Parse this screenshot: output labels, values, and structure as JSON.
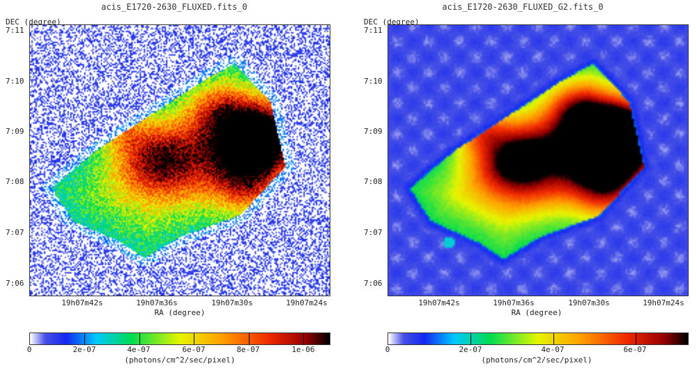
{
  "panels": [
    {
      "title": "acis_E1720-2630_FLUXED.fits_0",
      "dec_label": "DEC (degree)",
      "ra_label": "RA (degree)",
      "yticks": [
        "7:11",
        "7:10",
        "7:09",
        "7:08",
        "7:07",
        "7:06"
      ],
      "xticks": [
        "19h07m42s",
        "19h07m36s",
        "19h07m30s",
        "19h07m24s"
      ],
      "colorbar_ticks": [
        "0",
        "2e-07",
        "4e-07",
        "6e-07",
        "8e-07",
        "1e-06"
      ],
      "colorbar_unit": "(photons/cm^2/sec/pixel)",
      "colorbar_max": 1.1e-06,
      "style": "noisy"
    },
    {
      "title": "acis_E1720-2630_FLUXED_G2.fits_0",
      "dec_label": "DEC (degree)",
      "ra_label": "RA (degree)",
      "yticks": [
        "7:11",
        "7:10",
        "7:09",
        "7:08",
        "7:07",
        "7:06"
      ],
      "xticks": [
        "19h07m42s",
        "19h07m36s",
        "19h07m30s",
        "19h07m24s"
      ],
      "colorbar_ticks": [
        "0",
        "2e-07",
        "4e-07",
        "6e-07"
      ],
      "colorbar_unit": "(photons/cm^2/sec/pixel)",
      "colorbar_max": 7.3e-07,
      "style": "smooth"
    }
  ],
  "chart_data": [
    {
      "type": "heatmap",
      "title": "acis_E1720-2630_FLUXED.fits_0",
      "xlabel": "RA (degree)",
      "ylabel": "DEC (degree)",
      "x_tick_labels": [
        "19h07m42s",
        "19h07m36s",
        "19h07m30s",
        "19h07m24s"
      ],
      "y_tick_labels": [
        "7:11",
        "7:10",
        "7:09",
        "7:08",
        "7:07",
        "7:06"
      ],
      "colorbar": {
        "label": "(photons/cm^2/sec/pixel)",
        "range": [
          0,
          1.1e-06
        ],
        "ticks": [
          0,
          2e-07,
          4e-07,
          6e-07,
          8e-07,
          1e-06
        ]
      }
    },
    {
      "type": "heatmap",
      "title": "acis_E1720-2630_FLUXED_G2.fits_0",
      "xlabel": "RA (degree)",
      "ylabel": "DEC (degree)",
      "x_tick_labels": [
        "19h07m42s",
        "19h07m36s",
        "19h07m30s",
        "19h07m24s"
      ],
      "y_tick_labels": [
        "7:11",
        "7:10",
        "7:09",
        "7:08",
        "7:07",
        "7:06"
      ],
      "colorbar": {
        "label": "(photons/cm^2/sec/pixel)",
        "range": [
          0,
          7.3e-07
        ],
        "ticks": [
          0,
          2e-07,
          4e-07,
          6e-07
        ]
      }
    }
  ]
}
